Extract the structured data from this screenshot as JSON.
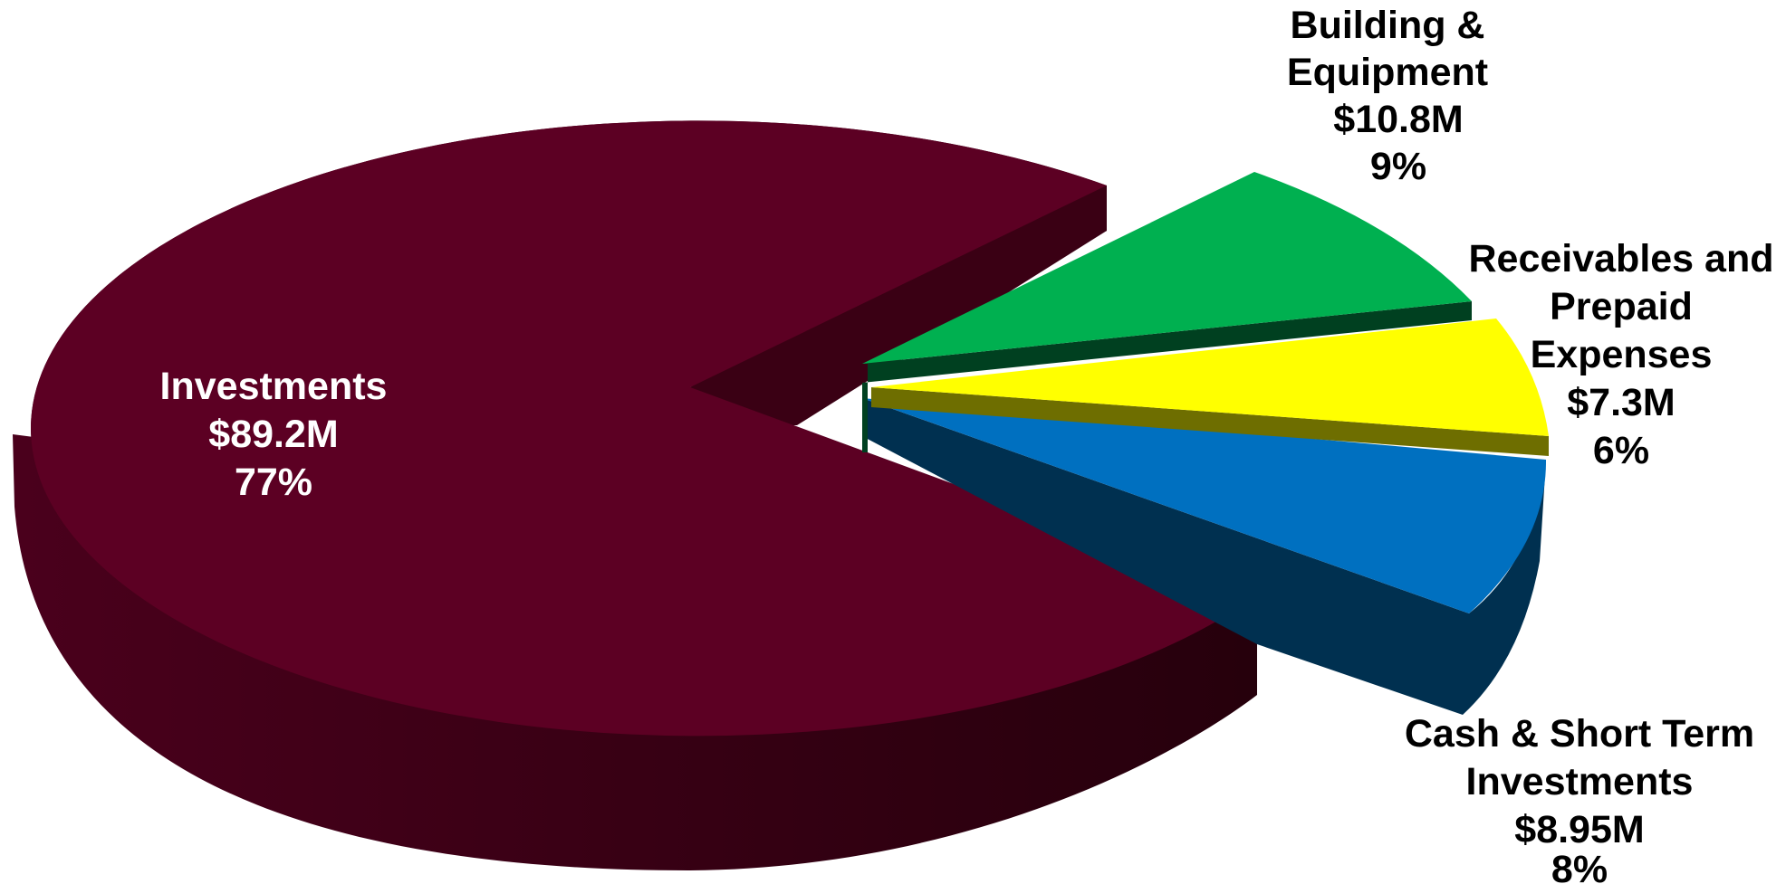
{
  "chart_data": {
    "type": "pie",
    "title": "",
    "style": "3d-exploded",
    "slices": [
      {
        "name": "Investments",
        "value_label": "$89.2M",
        "percent_label": "77%",
        "value": 89.2,
        "percent": 77,
        "color": "#5c0023",
        "label_lines": [
          "Investments",
          "$89.2M",
          "77%"
        ]
      },
      {
        "name": "Cash & Short Term Investments",
        "value_label": "$8.95M",
        "percent_label": "8%",
        "value": 8.95,
        "percent": 8,
        "color": "#0070c0",
        "label_lines": [
          "Cash & Short Term",
          "Investments",
          "$8.95M",
          "8%"
        ]
      },
      {
        "name": "Receivables and Prepaid Expenses",
        "value_label": "$7.3M",
        "percent_label": "6%",
        "value": 7.3,
        "percent": 6,
        "color": "#ffff00",
        "label_lines": [
          "Receivables and",
          "Prepaid",
          "Expenses",
          "$7.3M",
          "6%"
        ]
      },
      {
        "name": "Building & Equipment",
        "value_label": "$10.8M",
        "percent_label": "9%",
        "value": 10.8,
        "percent": 9,
        "color": "#00b050",
        "label_lines": [
          "Building &",
          "Equipment",
          "$10.8M",
          "9%"
        ]
      }
    ]
  }
}
